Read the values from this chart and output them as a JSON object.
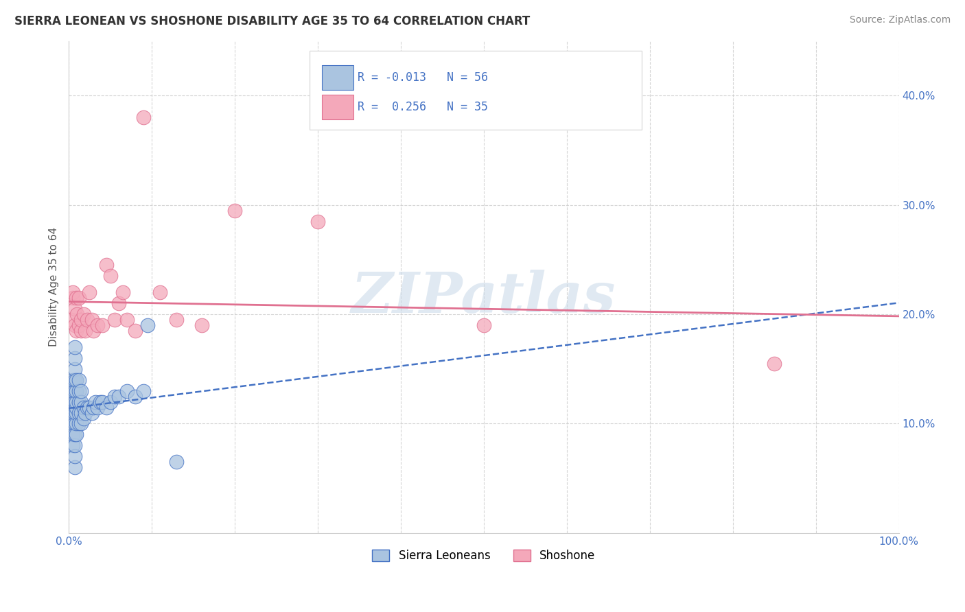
{
  "title": "SIERRA LEONEAN VS SHOSHONE DISABILITY AGE 35 TO 64 CORRELATION CHART",
  "source": "Source: ZipAtlas.com",
  "ylabel": "Disability Age 35 to 64",
  "xlim": [
    0.0,
    1.0
  ],
  "ylim": [
    0.0,
    0.45
  ],
  "xticks": [
    0.0,
    0.1,
    0.2,
    0.3,
    0.4,
    0.5,
    0.6,
    0.7,
    0.8,
    0.9,
    1.0
  ],
  "xtick_labels": [
    "0.0%",
    "",
    "",
    "",
    "",
    "",
    "",
    "",
    "",
    "",
    "100.0%"
  ],
  "yticks": [
    0.1,
    0.2,
    0.3,
    0.4
  ],
  "ytick_labels": [
    "10.0%",
    "20.0%",
    "30.0%",
    "40.0%"
  ],
  "legend_labels": [
    "Sierra Leoneans",
    "Shoshone"
  ],
  "r_sierra": -0.013,
  "n_sierra": 56,
  "r_shoshone": 0.256,
  "n_shoshone": 35,
  "sierra_color": "#aac4e0",
  "shoshone_color": "#f4a8ba",
  "trend_sierra_color": "#4472c4",
  "trend_shoshone_color": "#e07090",
  "watermark": "ZIPatlas",
  "background_color": "#ffffff",
  "grid_color": "#cccccc",
  "sierra_x": [
    0.005,
    0.005,
    0.005,
    0.005,
    0.005,
    0.005,
    0.005,
    0.005,
    0.007,
    0.007,
    0.007,
    0.007,
    0.007,
    0.007,
    0.007,
    0.007,
    0.007,
    0.007,
    0.007,
    0.007,
    0.009,
    0.009,
    0.009,
    0.009,
    0.009,
    0.009,
    0.009,
    0.012,
    0.012,
    0.012,
    0.012,
    0.012,
    0.015,
    0.015,
    0.015,
    0.015,
    0.018,
    0.018,
    0.02,
    0.022,
    0.025,
    0.028,
    0.03,
    0.032,
    0.035,
    0.038,
    0.04,
    0.045,
    0.05,
    0.055,
    0.06,
    0.07,
    0.08,
    0.09,
    0.095,
    0.13
  ],
  "sierra_y": [
    0.08,
    0.09,
    0.1,
    0.11,
    0.115,
    0.12,
    0.13,
    0.14,
    0.06,
    0.07,
    0.08,
    0.09,
    0.1,
    0.11,
    0.12,
    0.13,
    0.14,
    0.15,
    0.16,
    0.17,
    0.09,
    0.1,
    0.11,
    0.115,
    0.12,
    0.13,
    0.14,
    0.1,
    0.11,
    0.12,
    0.13,
    0.14,
    0.1,
    0.11,
    0.12,
    0.13,
    0.105,
    0.115,
    0.11,
    0.115,
    0.115,
    0.11,
    0.115,
    0.12,
    0.115,
    0.12,
    0.12,
    0.115,
    0.12,
    0.125,
    0.125,
    0.13,
    0.125,
    0.13,
    0.19,
    0.065
  ],
  "shoshone_x": [
    0.003,
    0.005,
    0.005,
    0.007,
    0.007,
    0.009,
    0.009,
    0.01,
    0.012,
    0.012,
    0.015,
    0.015,
    0.018,
    0.02,
    0.022,
    0.025,
    0.028,
    0.03,
    0.035,
    0.04,
    0.045,
    0.05,
    0.055,
    0.06,
    0.065,
    0.07,
    0.08,
    0.09,
    0.11,
    0.13,
    0.16,
    0.2,
    0.3,
    0.5,
    0.85
  ],
  "shoshone_y": [
    0.195,
    0.215,
    0.22,
    0.19,
    0.205,
    0.215,
    0.185,
    0.2,
    0.19,
    0.215,
    0.185,
    0.195,
    0.2,
    0.185,
    0.195,
    0.22,
    0.195,
    0.185,
    0.19,
    0.19,
    0.245,
    0.235,
    0.195,
    0.21,
    0.22,
    0.195,
    0.185,
    0.38,
    0.22,
    0.195,
    0.19,
    0.295,
    0.285,
    0.19,
    0.155
  ]
}
